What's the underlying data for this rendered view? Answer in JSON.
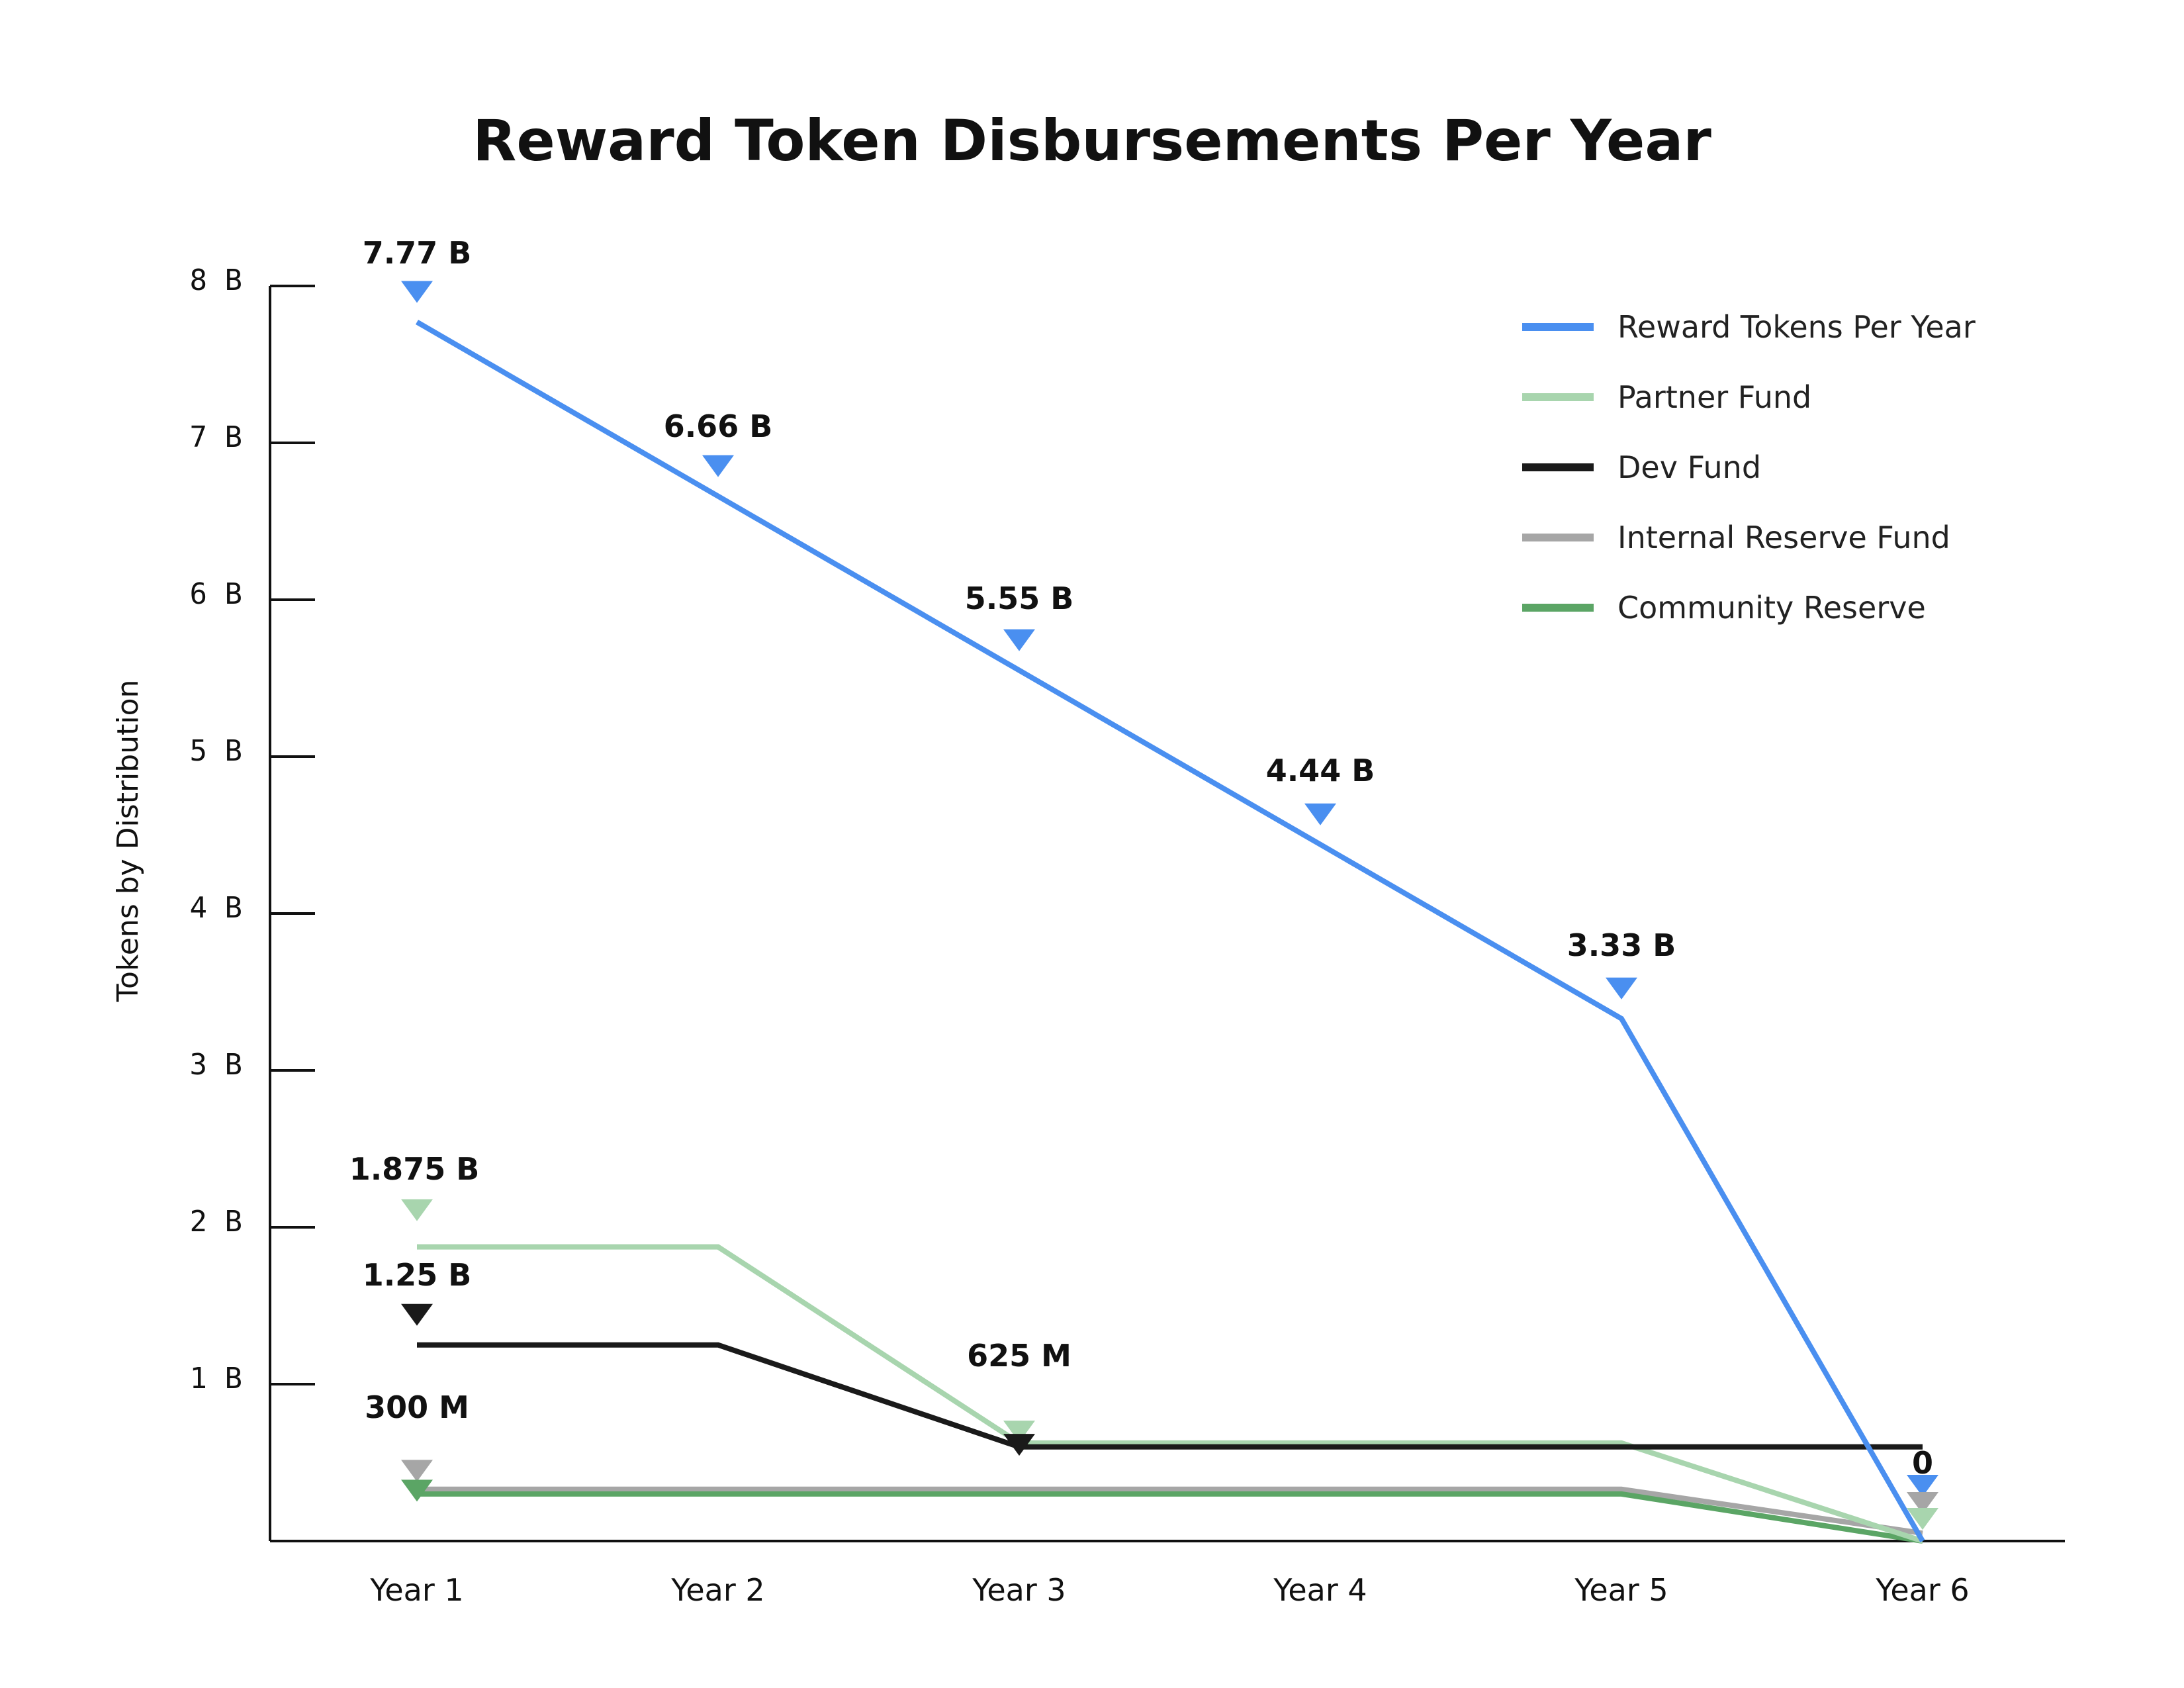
{
  "chart_data": {
    "type": "line",
    "title": "Reward Token Disbursements Per Year",
    "xlabel": "",
    "ylabel": "Tokens by Distribution",
    "categories": [
      "Year 1",
      "Year 2",
      "Year 3",
      "Year 4",
      "Year 5",
      "Year 6"
    ],
    "y_ticks": [
      {
        "value": 1,
        "label": "1 B"
      },
      {
        "value": 2,
        "label": "2 B"
      },
      {
        "value": 3,
        "label": "3 B"
      },
      {
        "value": 4,
        "label": "4 B"
      },
      {
        "value": 5,
        "label": "5 B"
      },
      {
        "value": 6,
        "label": "6 B"
      },
      {
        "value": 7,
        "label": "7 B"
      },
      {
        "value": 8,
        "label": "8 B"
      }
    ],
    "ylim": [
      0,
      8
    ],
    "y_unit": "billions of tokens",
    "grid": false,
    "legend_position": "top-right",
    "series": [
      {
        "name": "Reward Tokens Per Year",
        "color": "#4a8ff0",
        "values": [
          7.77,
          6.66,
          5.55,
          4.44,
          3.33,
          0
        ]
      },
      {
        "name": "Partner Fund",
        "color": "#a8d5ae",
        "values": [
          1.875,
          1.875,
          0.625,
          0.625,
          0.625,
          0
        ]
      },
      {
        "name": "Dev Fund",
        "color": "#1a1a1a",
        "values": [
          1.25,
          1.25,
          0.6,
          0.6,
          0.6,
          0.6
        ]
      },
      {
        "name": "Internal Reserve Fund",
        "color": "#a6a6a6",
        "values": [
          0.33,
          0.33,
          0.33,
          0.33,
          0.33,
          0.05
        ]
      },
      {
        "name": "Community Reserve",
        "color": "#5ba565",
        "values": [
          0.3,
          0.3,
          0.3,
          0.3,
          0.3,
          0
        ]
      }
    ],
    "annotations": [
      {
        "text": "7.77 B",
        "series": 0,
        "index": 0
      },
      {
        "text": "6.66 B",
        "series": 0,
        "index": 1
      },
      {
        "text": "5.55 B",
        "series": 0,
        "index": 2
      },
      {
        "text": "4.44 B",
        "series": 0,
        "index": 3
      },
      {
        "text": "3.33 B",
        "series": 0,
        "index": 4
      },
      {
        "text": "0",
        "series": 0,
        "index": 5
      },
      {
        "text": "1.875 B",
        "series": 1,
        "index": 0
      },
      {
        "text": "1.25 B",
        "series": 2,
        "index": 0
      },
      {
        "text": "625 M",
        "series": 1,
        "index": 2
      },
      {
        "text": "300 M",
        "series": 4,
        "index": 0
      }
    ]
  }
}
